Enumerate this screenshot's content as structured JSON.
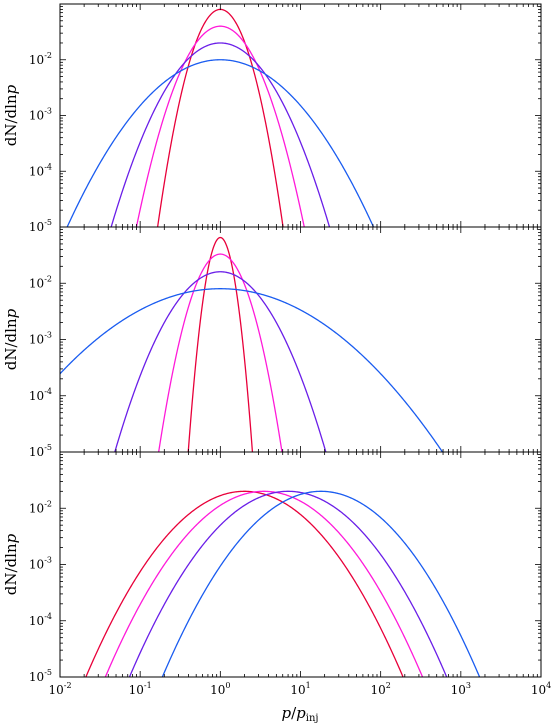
{
  "chart_data": [
    {
      "type": "line",
      "panel": "top",
      "xscale": "log",
      "yscale": "log",
      "xlim": [
        0.01,
        10000
      ],
      "ylim": [
        1e-05,
        0.1
      ],
      "ylabel": "dN/dlnp",
      "series": [
        {
          "color": "#e8003a",
          "peak_x": 1.0,
          "peak_y": 0.08,
          "log10_sigma": 0.28
        },
        {
          "color": "#ff1ad9",
          "peak_x": 1.0,
          "peak_y": 0.04,
          "log10_sigma": 0.39
        },
        {
          "color": "#6a1ee8",
          "peak_x": 1.0,
          "peak_y": 0.02,
          "log10_sigma": 0.53
        },
        {
          "color": "#1a5cf0",
          "peak_x": 1.0,
          "peak_y": 0.01,
          "log10_sigma": 0.78
        }
      ]
    },
    {
      "type": "line",
      "panel": "middle",
      "xscale": "log",
      "yscale": "log",
      "xlim": [
        0.01,
        10000
      ],
      "ylim": [
        1e-05,
        0.1
      ],
      "ylabel": "dN/dlnp",
      "series": [
        {
          "color": "#e8003a",
          "peak_x": 1.0,
          "peak_y": 0.065,
          "log10_sigma": 0.145
        },
        {
          "color": "#ff1ad9",
          "peak_x": 1.0,
          "peak_y": 0.033,
          "log10_sigma": 0.29
        },
        {
          "color": "#6a1ee8",
          "peak_x": 1.0,
          "peak_y": 0.016,
          "log10_sigma": 0.52
        },
        {
          "color": "#1a5cf0",
          "peak_x": 1.0,
          "peak_y": 0.008,
          "log10_sigma": 1.15
        }
      ]
    },
    {
      "type": "line",
      "panel": "bottom",
      "xscale": "log",
      "yscale": "log",
      "xlim": [
        0.01,
        10000
      ],
      "ylim": [
        1e-05,
        0.1
      ],
      "xlabel": "p/p_inj",
      "ylabel": "dN/dlnp",
      "series": [
        {
          "color": "#e8003a",
          "peak_x": 2.0,
          "peak_y": 0.02,
          "log10_sigma": 0.77
        },
        {
          "color": "#ff1ad9",
          "peak_x": 3.5,
          "peak_y": 0.02,
          "log10_sigma": 0.77
        },
        {
          "color": "#6a1ee8",
          "peak_x": 7.0,
          "peak_y": 0.02,
          "log10_sigma": 0.77
        },
        {
          "color": "#1a5cf0",
          "peak_x": 18.0,
          "peak_y": 0.02,
          "log10_sigma": 0.77
        }
      ]
    }
  ],
  "axes": {
    "ylabel": {
      "main": "dN/dln",
      "var": "p"
    },
    "xlabel": {
      "num": "p",
      "sep": "/",
      "den": "p",
      "sub": "inj"
    },
    "xticks": [
      {
        "base": "10",
        "exp": "-2"
      },
      {
        "base": "10",
        "exp": "-1"
      },
      {
        "base": "10",
        "exp": "0"
      },
      {
        "base": "10",
        "exp": "1"
      },
      {
        "base": "10",
        "exp": "2"
      },
      {
        "base": "10",
        "exp": "3"
      },
      {
        "base": "10",
        "exp": "4"
      }
    ],
    "yticks": [
      {
        "base": "10",
        "exp": "-2"
      },
      {
        "base": "10",
        "exp": "-3"
      },
      {
        "base": "10",
        "exp": "-4"
      },
      {
        "base": "10",
        "exp": "-5"
      }
    ]
  }
}
